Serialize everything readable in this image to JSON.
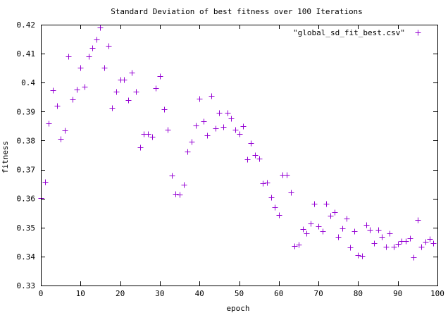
{
  "chart_data": {
    "type": "scatter",
    "title": "Standard Deviation of best fitness over 100 Iterations",
    "xlabel": "epoch",
    "ylabel": "fitness",
    "xlim": [
      0,
      100
    ],
    "ylim": [
      0.33,
      0.42
    ],
    "xticks": [
      0,
      10,
      20,
      30,
      40,
      50,
      60,
      70,
      80,
      90,
      100
    ],
    "yticks": [
      0.33,
      0.34,
      0.35,
      0.36,
      0.37,
      0.38,
      0.39,
      0.4,
      0.41,
      0.42
    ],
    "ytick_labels": [
      "0.33",
      "0.34",
      "0.35",
      "0.36",
      "0.37",
      "0.38",
      "0.39",
      "0.4",
      "0.41",
      "0.42"
    ],
    "grid": false,
    "legend_position": "top-right",
    "marker_color": "#9400d3",
    "series": [
      {
        "name": "\"global_sd_fit_best.csv\"",
        "points": [
          [
            0,
            0.3602
          ],
          [
            1,
            0.3657
          ],
          [
            2,
            0.3859
          ],
          [
            3,
            0.3973
          ],
          [
            4,
            0.392
          ],
          [
            5,
            0.3805
          ],
          [
            6,
            0.3835
          ],
          [
            7,
            0.409
          ],
          [
            8,
            0.3942
          ],
          [
            9,
            0.3975
          ],
          [
            10,
            0.4052
          ],
          [
            11,
            0.3986
          ],
          [
            12,
            0.409
          ],
          [
            13,
            0.4119
          ],
          [
            14,
            0.4148
          ],
          [
            15,
            0.4191
          ],
          [
            16,
            0.4052
          ],
          [
            17,
            0.4128
          ],
          [
            18,
            0.3912
          ],
          [
            19,
            0.3969
          ],
          [
            20,
            0.4011
          ],
          [
            21,
            0.4011
          ],
          [
            22,
            0.394
          ],
          [
            23,
            0.4035
          ],
          [
            24,
            0.3969
          ],
          [
            25,
            0.3777
          ],
          [
            26,
            0.3823
          ],
          [
            27,
            0.3824
          ],
          [
            28,
            0.3813
          ],
          [
            29,
            0.398
          ],
          [
            30,
            0.4023
          ],
          [
            31,
            0.3907
          ],
          [
            32,
            0.3838
          ],
          [
            33,
            0.368
          ],
          [
            34,
            0.3617
          ],
          [
            35,
            0.3614
          ],
          [
            36,
            0.3647
          ],
          [
            37,
            0.3762
          ],
          [
            38,
            0.3795
          ],
          [
            39,
            0.3852
          ],
          [
            40,
            0.3944
          ],
          [
            41,
            0.3867
          ],
          [
            42,
            0.3818
          ],
          [
            43,
            0.3954
          ],
          [
            44,
            0.3843
          ],
          [
            45,
            0.3896
          ],
          [
            46,
            0.3847
          ],
          [
            47,
            0.3896
          ],
          [
            48,
            0.3877
          ],
          [
            49,
            0.3838
          ],
          [
            50,
            0.3823
          ],
          [
            51,
            0.385
          ],
          [
            52,
            0.3735
          ],
          [
            53,
            0.3791
          ],
          [
            54,
            0.3749
          ],
          [
            55,
            0.3737
          ],
          [
            56,
            0.3652
          ],
          [
            57,
            0.3656
          ],
          [
            58,
            0.3603
          ],
          [
            59,
            0.3569
          ],
          [
            60,
            0.3544
          ],
          [
            61,
            0.3681
          ],
          [
            62,
            0.3683
          ],
          [
            63,
            0.3622
          ],
          [
            64,
            0.3435
          ],
          [
            65,
            0.3441
          ],
          [
            66,
            0.3495
          ],
          [
            67,
            0.3479
          ],
          [
            68,
            0.3515
          ],
          [
            69,
            0.3583
          ],
          [
            70,
            0.3505
          ],
          [
            71,
            0.3487
          ],
          [
            72,
            0.3583
          ],
          [
            73,
            0.3542
          ],
          [
            74,
            0.3552
          ],
          [
            75,
            0.3467
          ],
          [
            76,
            0.3498
          ],
          [
            77,
            0.3532
          ],
          [
            78,
            0.3432
          ],
          [
            79,
            0.3488
          ],
          [
            80,
            0.3405
          ],
          [
            81,
            0.3402
          ],
          [
            82,
            0.351
          ],
          [
            83,
            0.3493
          ],
          [
            84,
            0.3447
          ],
          [
            85,
            0.3493
          ],
          [
            86,
            0.3468
          ],
          [
            87,
            0.3434
          ],
          [
            88,
            0.3479
          ],
          [
            89,
            0.3433
          ],
          [
            90,
            0.3443
          ],
          [
            91,
            0.3453
          ],
          [
            92,
            0.3454
          ],
          [
            93,
            0.3462
          ],
          [
            94,
            0.3398
          ],
          [
            95,
            0.3527
          ],
          [
            96,
            0.3433
          ],
          [
            97,
            0.3451
          ],
          [
            98,
            0.3461
          ],
          [
            99,
            0.3446
          ]
        ]
      }
    ]
  }
}
